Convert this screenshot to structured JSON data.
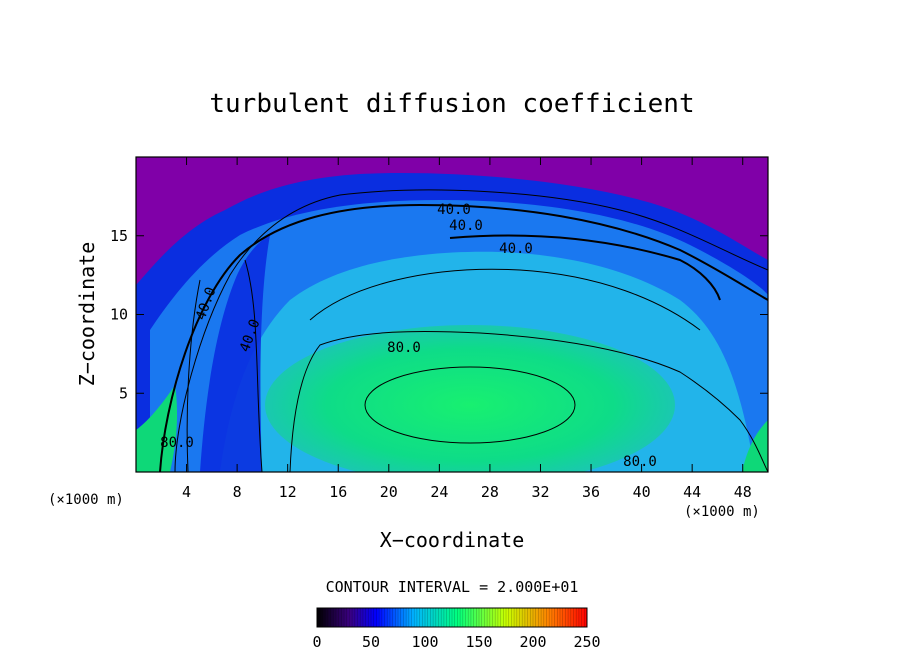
{
  "chart_data": {
    "type": "heatmap",
    "title": "turbulent diffusion coefficient",
    "xlabel": "X−coordinate",
    "ylabel": "Z−coordinate",
    "x_unit_left": "(×1000 m)",
    "x_unit_right": "(×1000 m)",
    "xlim": [
      0,
      50
    ],
    "ylim": [
      0,
      20
    ],
    "xticks": [
      4,
      8,
      12,
      16,
      20,
      24,
      28,
      32,
      36,
      40,
      44,
      48
    ],
    "yticks": [
      5,
      10,
      15
    ],
    "contour_interval_label": "CONTOUR INTERVAL = 2.000E+01",
    "contour_labels": [
      {
        "text": "40.0",
        "x": 24.6,
        "z": 16.6
      },
      {
        "text": "40.0",
        "x": 26.0,
        "z": 15.6
      },
      {
        "text": "40.0",
        "x": 31.0,
        "z": 14.2
      },
      {
        "text": "40.0",
        "x": 5.8,
        "z": 10.3
      },
      {
        "text": "40.0",
        "x": 9.4,
        "z": 8.5
      },
      {
        "text": "80.0",
        "x": 21.3,
        "z": 8.1
      },
      {
        "text": "80.0",
        "x": 3.3,
        "z": 1.9
      },
      {
        "text": "80.0",
        "x": 39.8,
        "z": 0.6
      }
    ],
    "colorbar": {
      "min": 0,
      "max": 250,
      "ticks": [
        0,
        50,
        100,
        150,
        200,
        250
      ],
      "colors": [
        "#000000",
        "#3a0080",
        "#0000ff",
        "#00b4ff",
        "#00ff7f",
        "#c8ff00",
        "#ff8000",
        "#ff0000"
      ]
    },
    "colors": {
      "background": "#8000a8",
      "outer": "#0a2ee0",
      "mid": "#1a78f0",
      "inner": "#22b4ea",
      "core": "#0edc82"
    }
  }
}
